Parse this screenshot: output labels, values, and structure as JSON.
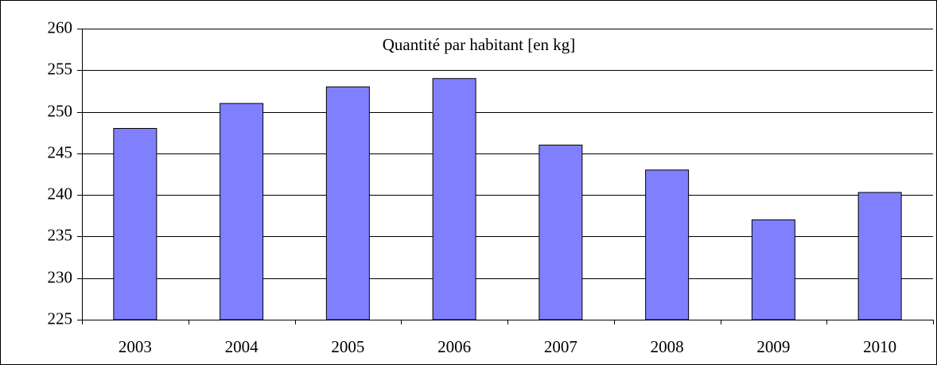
{
  "chart_data": {
    "type": "bar",
    "title": "Quantité par habitant [en kg]",
    "categories": [
      "2003",
      "2004",
      "2005",
      "2006",
      "2007",
      "2008",
      "2009",
      "2010"
    ],
    "values": [
      248,
      251,
      253,
      254,
      246,
      243,
      237,
      240.3
    ],
    "color": "#8080ff",
    "ylim": [
      225,
      260
    ],
    "yticks": [
      225,
      230,
      235,
      240,
      245,
      250,
      255,
      260
    ],
    "grid": true
  }
}
